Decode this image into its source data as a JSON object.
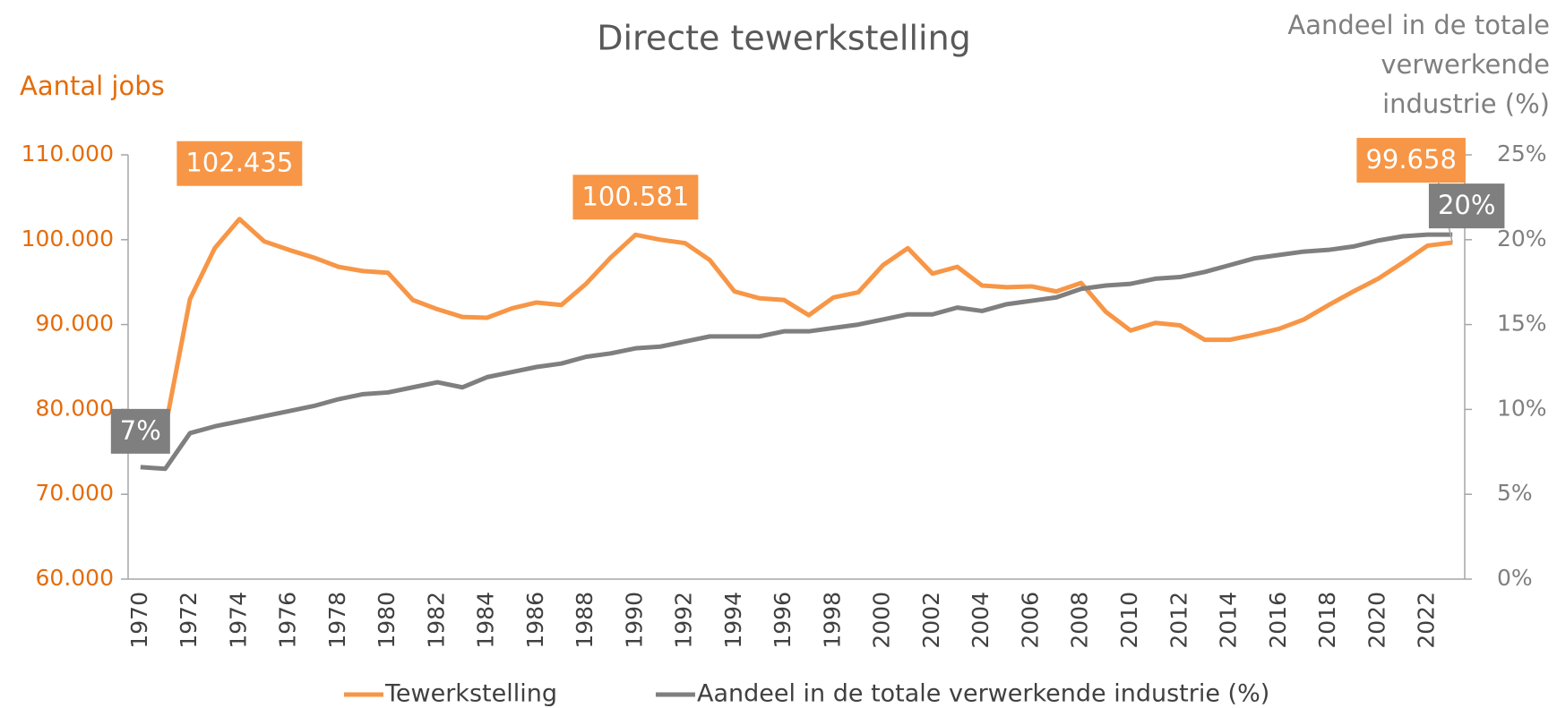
{
  "chart_data": {
    "type": "line",
    "title": "Directe tewerkstelling",
    "ylabel": "Aantal jobs",
    "y2label": "Aandeel in de totale verwerkende industrie (%)",
    "categories": [
      "1970",
      null,
      "1972",
      null,
      "1974",
      null,
      "1976",
      null,
      "1978",
      null,
      "1980",
      null,
      "1982",
      null,
      "1984",
      null,
      "1986",
      null,
      "1988",
      null,
      "1990",
      null,
      "1992",
      null,
      "1994",
      null,
      "1996",
      null,
      "1998",
      null,
      "2000",
      null,
      "2002",
      null,
      "2004",
      null,
      "2006",
      null,
      "2008",
      null,
      "2010",
      null,
      "2012",
      null,
      "2014",
      null,
      "2016",
      null,
      "2018",
      null,
      "2020",
      null,
      "2022",
      null
    ],
    "series": [
      {
        "name": "Tewerkstelling",
        "color": "#f79646",
        "values": [
          77000,
          77800,
          93000,
          99000,
          102435,
          99800,
          98800,
          97900,
          96800,
          96300,
          96100,
          92900,
          91800,
          90900,
          90800,
          91900,
          92600,
          92300,
          94800,
          97900,
          100581,
          100000,
          99600,
          97600,
          93900,
          93100,
          92900,
          91100,
          93200,
          93800,
          97000,
          99000,
          96000,
          96800,
          94600,
          94400,
          94500,
          93900,
          94900,
          91500,
          89300,
          90200,
          89900,
          88200,
          88200,
          88800,
          89500,
          90600,
          92300,
          93900,
          95400,
          97300,
          99300,
          99658
        ],
        "value_labels": [
          null,
          null,
          null,
          null,
          "102.435",
          null,
          null,
          null,
          null,
          null,
          null,
          null,
          null,
          null,
          null,
          null,
          null,
          null,
          null,
          null,
          "100.581",
          null,
          null,
          null,
          null,
          null,
          null,
          null,
          null,
          null,
          null,
          null,
          null,
          null,
          null,
          null,
          null,
          null,
          null,
          null,
          null,
          null,
          null,
          null,
          null,
          null,
          null,
          null,
          null,
          null,
          null,
          null,
          null,
          "99.658"
        ]
      },
      {
        "name": "Aandeel in de totale verwerkende industrie (%)",
        "color": "#7f7f7f",
        "axis": "y2",
        "values": [
          6.6,
          6.5,
          8.6,
          9.0,
          9.3,
          9.6,
          9.9,
          10.2,
          10.6,
          10.9,
          11.0,
          11.3,
          11.6,
          11.3,
          11.9,
          12.2,
          12.5,
          12.7,
          13.1,
          13.3,
          13.6,
          13.7,
          14.0,
          14.3,
          14.3,
          14.3,
          14.6,
          14.6,
          14.8,
          15.0,
          15.3,
          15.6,
          15.6,
          16.0,
          15.8,
          16.2,
          16.4,
          16.6,
          17.1,
          17.3,
          17.4,
          17.7,
          17.8,
          18.1,
          18.5,
          18.9,
          19.1,
          19.3,
          19.4,
          19.6,
          19.95,
          20.2,
          20.3,
          20.3
        ],
        "value_labels": [
          "7%",
          null,
          null,
          null,
          null,
          null,
          null,
          null,
          null,
          null,
          null,
          null,
          null,
          null,
          null,
          null,
          null,
          null,
          null,
          null,
          null,
          null,
          null,
          null,
          null,
          null,
          null,
          null,
          null,
          null,
          null,
          null,
          null,
          null,
          null,
          null,
          null,
          null,
          null,
          null,
          null,
          null,
          null,
          null,
          null,
          null,
          null,
          null,
          null,
          null,
          null,
          null,
          null,
          "20%"
        ]
      }
    ],
    "ylim": [
      60000,
      110000
    ],
    "yticks": [
      {
        "value": 60000,
        "label": "60.000"
      },
      {
        "value": 70000,
        "label": "70.000"
      },
      {
        "value": 80000,
        "label": "80.000"
      },
      {
        "value": 90000,
        "label": "90.000"
      },
      {
        "value": 100000,
        "label": "100.000"
      },
      {
        "value": 110000,
        "label": "110.000"
      }
    ],
    "y2lim": [
      0,
      25
    ],
    "y2ticks": [
      {
        "value": 0,
        "label": "0%"
      },
      {
        "value": 5,
        "label": "5%"
      },
      {
        "value": 10,
        "label": "10%"
      },
      {
        "value": 15,
        "label": "15%"
      },
      {
        "value": 20,
        "label": "20%"
      },
      {
        "value": 25,
        "label": "25%"
      }
    ],
    "legend": "bottom"
  }
}
